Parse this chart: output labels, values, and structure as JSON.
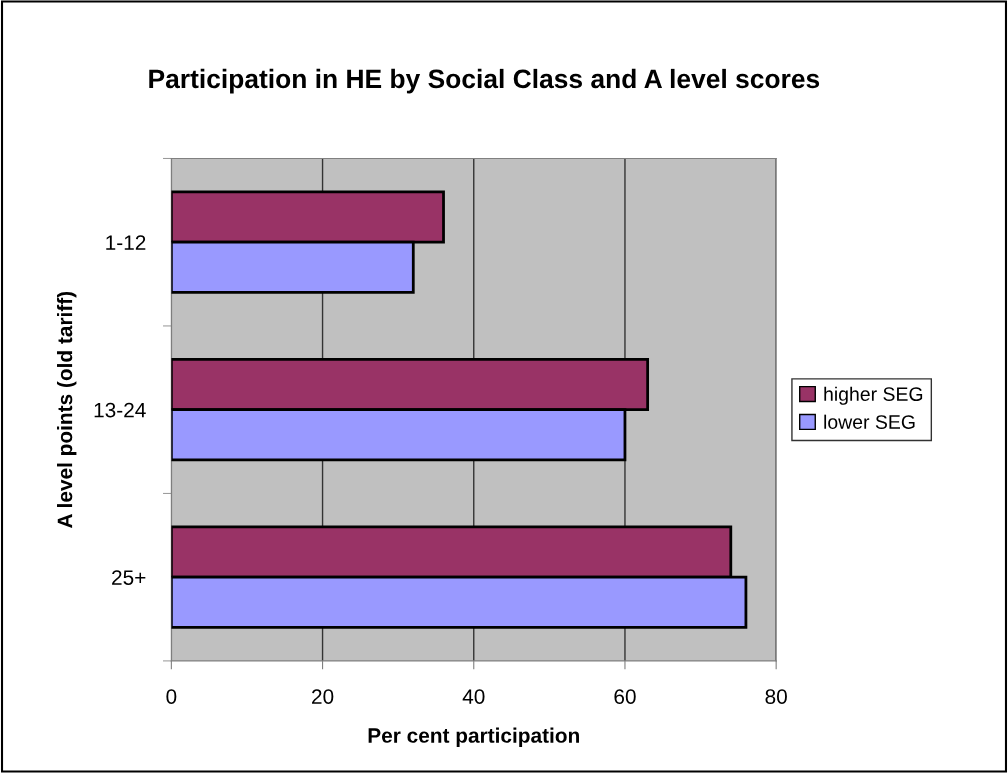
{
  "chart_data": {
    "type": "bar",
    "orientation": "horizontal",
    "title": "Participation in HE by Social Class and A level scores",
    "xlabel": "Per cent participation",
    "ylabel": "A level points (old tariff)",
    "categories": [
      "1-12",
      "13-24",
      "25+"
    ],
    "series": [
      {
        "name": "higher SEG",
        "color": "#993366",
        "values": [
          36,
          63,
          74
        ]
      },
      {
        "name": "lower SEG",
        "color": "#9999ff",
        "values": [
          32,
          60,
          76
        ]
      }
    ],
    "xlim": [
      0,
      80
    ],
    "xticks": [
      0,
      20,
      40,
      60,
      80
    ],
    "grid": "x",
    "legend": "right"
  }
}
